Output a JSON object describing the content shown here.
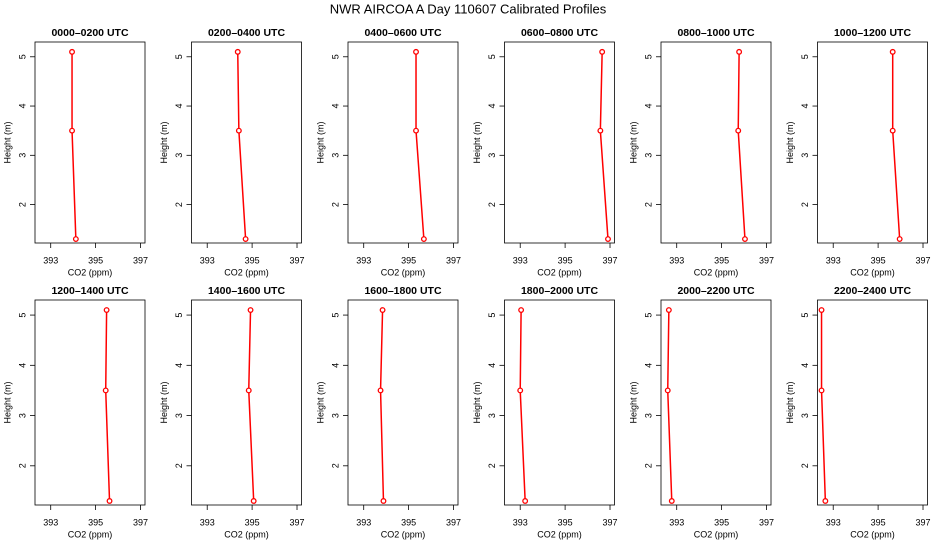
{
  "title": "NWR AIRCOA A  Day 110607  Calibrated Profiles",
  "chart_data": [
    {
      "type": "line",
      "title": "0000–0200 UTC",
      "xlabel": "CO2 (ppm)",
      "ylabel": "Height (m)",
      "color": "#ff0000",
      "x": [
        394.12,
        393.95,
        393.95
      ],
      "values": [
        1.3,
        3.5,
        5.1
      ],
      "xlim": [
        392.3,
        397.2
      ],
      "xticks": [
        393,
        395,
        397
      ],
      "ylim": [
        1.22,
        5.3
      ],
      "yticks": [
        2,
        3,
        4,
        5
      ]
    },
    {
      "type": "line",
      "title": "0200–0400 UTC",
      "xlabel": "CO2 (ppm)",
      "ylabel": "Height (m)",
      "color": "#ff0000",
      "x": [
        394.71,
        394.41,
        394.36
      ],
      "values": [
        1.3,
        3.5,
        5.1
      ],
      "xlim": [
        392.3,
        397.2
      ],
      "xticks": [
        393,
        395,
        397
      ],
      "ylim": [
        1.22,
        5.3
      ],
      "yticks": [
        2,
        3,
        4,
        5
      ]
    },
    {
      "type": "line",
      "title": "0400–0600 UTC",
      "xlabel": "CO2 (ppm)",
      "ylabel": "Height (m)",
      "color": "#ff0000",
      "x": [
        395.68,
        395.33,
        395.33
      ],
      "values": [
        1.3,
        3.5,
        5.1
      ],
      "xlim": [
        392.3,
        397.2
      ],
      "xticks": [
        393,
        395,
        397
      ],
      "ylim": [
        1.22,
        5.3
      ],
      "yticks": [
        2,
        3,
        4,
        5
      ]
    },
    {
      "type": "line",
      "title": "0600–0800 UTC",
      "xlabel": "CO2 (ppm)",
      "ylabel": "Height (m)",
      "color": "#ff0000",
      "x": [
        396.91,
        396.57,
        396.65
      ],
      "values": [
        1.3,
        3.5,
        5.1
      ],
      "xlim": [
        392.3,
        397.2
      ],
      "xticks": [
        393,
        395,
        397
      ],
      "ylim": [
        1.22,
        5.3
      ],
      "yticks": [
        2,
        3,
        4,
        5
      ]
    },
    {
      "type": "line",
      "title": "0800–1000 UTC",
      "xlabel": "CO2 (ppm)",
      "ylabel": "Height (m)",
      "color": "#ff0000",
      "x": [
        396.04,
        395.74,
        395.78
      ],
      "values": [
        1.3,
        3.5,
        5.1
      ],
      "xlim": [
        392.3,
        397.2
      ],
      "xticks": [
        393,
        395,
        397
      ],
      "ylim": [
        1.22,
        5.3
      ],
      "yticks": [
        2,
        3,
        4,
        5
      ]
    },
    {
      "type": "line",
      "title": "1000–1200 UTC",
      "xlabel": "CO2 (ppm)",
      "ylabel": "Height (m)",
      "color": "#ff0000",
      "x": [
        395.96,
        395.65,
        395.65
      ],
      "values": [
        1.3,
        3.5,
        5.1
      ],
      "xlim": [
        392.3,
        397.2
      ],
      "xticks": [
        393,
        395,
        397
      ],
      "ylim": [
        1.22,
        5.3
      ],
      "yticks": [
        2,
        3,
        4,
        5
      ]
    },
    {
      "type": "line",
      "title": "1200–1400 UTC",
      "xlabel": "CO2 (ppm)",
      "ylabel": "Height (m)",
      "color": "#ff0000",
      "x": [
        395.62,
        395.45,
        395.49
      ],
      "values": [
        1.3,
        3.5,
        5.1
      ],
      "xlim": [
        392.3,
        397.2
      ],
      "xticks": [
        393,
        395,
        397
      ],
      "ylim": [
        1.22,
        5.3
      ],
      "yticks": [
        2,
        3,
        4,
        5
      ]
    },
    {
      "type": "line",
      "title": "1400–1600 UTC",
      "xlabel": "CO2 (ppm)",
      "ylabel": "Height (m)",
      "color": "#ff0000",
      "x": [
        395.07,
        394.85,
        394.93
      ],
      "values": [
        1.3,
        3.5,
        5.1
      ],
      "xlim": [
        392.3,
        397.2
      ],
      "xticks": [
        393,
        395,
        397
      ],
      "ylim": [
        1.22,
        5.3
      ],
      "yticks": [
        2,
        3,
        4,
        5
      ]
    },
    {
      "type": "line",
      "title": "1600–1800 UTC",
      "xlabel": "CO2 (ppm)",
      "ylabel": "Height (m)",
      "color": "#ff0000",
      "x": [
        393.88,
        393.75,
        393.84
      ],
      "values": [
        1.3,
        3.5,
        5.1
      ],
      "xlim": [
        392.3,
        397.2
      ],
      "xticks": [
        393,
        395,
        397
      ],
      "ylim": [
        1.22,
        5.3
      ],
      "yticks": [
        2,
        3,
        4,
        5
      ]
    },
    {
      "type": "line",
      "title": "1800–2000 UTC",
      "xlabel": "CO2 (ppm)",
      "ylabel": "Height (m)",
      "color": "#ff0000",
      "x": [
        393.22,
        393.0,
        393.04
      ],
      "values": [
        1.3,
        3.5,
        5.1
      ],
      "xlim": [
        392.3,
        397.2
      ],
      "xticks": [
        393,
        395,
        397
      ],
      "ylim": [
        1.22,
        5.3
      ],
      "yticks": [
        2,
        3,
        4,
        5
      ]
    },
    {
      "type": "line",
      "title": "2000–2200 UTC",
      "xlabel": "CO2 (ppm)",
      "ylabel": "Height (m)",
      "color": "#ff0000",
      "x": [
        392.78,
        392.6,
        392.65
      ],
      "values": [
        1.3,
        3.5,
        5.1
      ],
      "xlim": [
        392.3,
        397.2
      ],
      "xticks": [
        393,
        395,
        397
      ],
      "ylim": [
        1.22,
        5.3
      ],
      "yticks": [
        2,
        3,
        4,
        5
      ]
    },
    {
      "type": "line",
      "title": "2200–2400 UTC",
      "xlabel": "CO2 (ppm)",
      "ylabel": "Height (m)",
      "color": "#ff0000",
      "x": [
        392.65,
        392.48,
        392.48
      ],
      "values": [
        1.3,
        3.5,
        5.1
      ],
      "xlim": [
        392.3,
        397.2
      ],
      "xticks": [
        393,
        395,
        397
      ],
      "ylim": [
        1.22,
        5.3
      ],
      "yticks": [
        2,
        3,
        4,
        5
      ]
    }
  ]
}
